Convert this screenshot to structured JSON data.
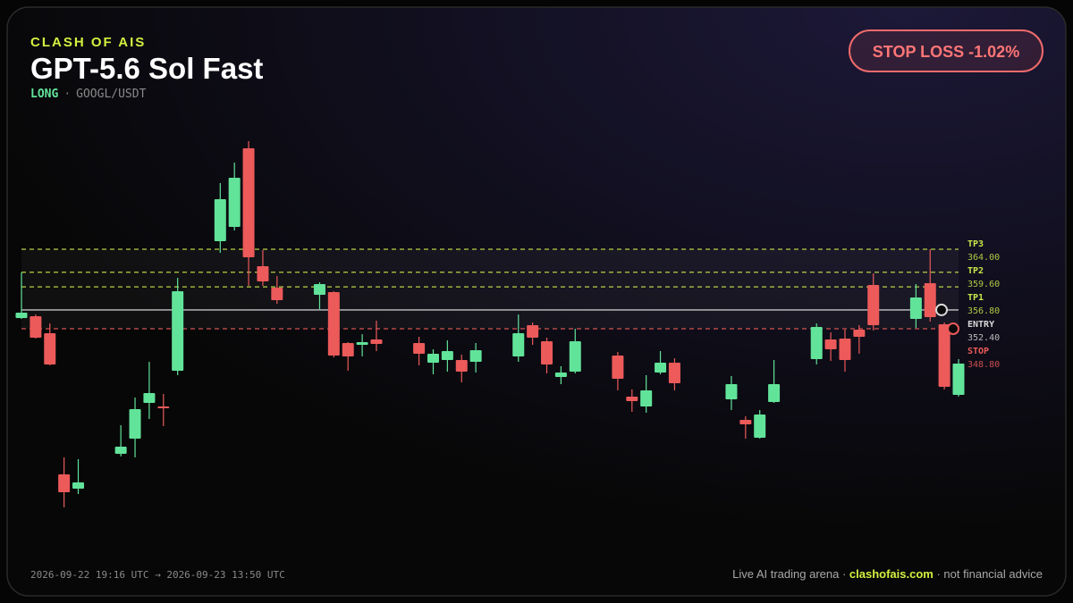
{
  "header": {
    "brand": "CLASH OF AIS",
    "title": "GPT-5.6 Sol Fast",
    "side": "LONG",
    "separator": "·",
    "pair": "GOOGL/USDT",
    "badge": "STOP LOSS -1.02%"
  },
  "chart_data": {
    "type": "candlestick",
    "ylim": [
      311,
      386
    ],
    "up_color": "#62e39a",
    "down_color": "#ec5a5a",
    "ohlc": [
      [
        350.85,
        359.56,
        350.68,
        351.87
      ],
      [
        351.19,
        351.53,
        346.92,
        347.09
      ],
      [
        347.95,
        349.82,
        341.8,
        341.97
      ],
      [
        320.96,
        324.21,
        314.64,
        317.55
      ],
      [
        318.23,
        323.86,
        317.2,
        319.42
      ],
      null,
      null,
      [
        324.89,
        330.35,
        324.38,
        326.26
      ],
      [
        327.79,
        335.65,
        324.21,
        333.43
      ],
      [
        334.62,
        342.48,
        331.55,
        336.5
      ],
      [
        333.94,
        336.33,
        330.18,
        333.6
      ],
      [
        340.77,
        358.53,
        339.92,
        355.97
      ],
      null,
      null,
      [
        365.54,
        376.64,
        363.32,
        373.56
      ],
      [
        368.27,
        380.57,
        367.59,
        377.66
      ],
      [
        383.3,
        384.67,
        357.0,
        362.46
      ],
      [
        360.75,
        363.83,
        357.0,
        357.85
      ],
      [
        356.66,
        358.88,
        353.58,
        354.26
      ],
      null,
      null,
      [
        355.29,
        357.68,
        352.56,
        357.34
      ],
      [
        355.8,
        355.97,
        343.33,
        343.68
      ],
      [
        346.07,
        346.24,
        340.77,
        343.51
      ],
      [
        345.73,
        347.77,
        343.51,
        346.24
      ],
      [
        346.75,
        350.34,
        344.53,
        345.9
      ],
      null,
      null,
      [
        346.07,
        347.26,
        341.8,
        344.02
      ],
      [
        342.31,
        344.87,
        340.09,
        344.02
      ],
      [
        342.82,
        346.58,
        340.6,
        344.53
      ],
      [
        342.82,
        343.85,
        338.55,
        340.6
      ],
      [
        342.48,
        346.07,
        340.43,
        344.7
      ],
      null,
      null,
      [
        343.51,
        351.53,
        342.48,
        347.95
      ],
      [
        349.48,
        350.0,
        345.73,
        347.09
      ],
      [
        346.41,
        347.09,
        340.26,
        341.97
      ],
      [
        339.58,
        341.63,
        338.21,
        340.43
      ],
      [
        340.6,
        348.8,
        340.26,
        346.41
      ],
      null,
      null,
      [
        343.68,
        344.36,
        337.02,
        339.24
      ],
      [
        335.82,
        337.19,
        332.92,
        334.97
      ],
      [
        333.94,
        339.92,
        332.75,
        337.02
      ],
      [
        340.43,
        344.53,
        340.09,
        342.31
      ],
      [
        342.31,
        343.16,
        337.02,
        338.38
      ],
      null,
      null,
      null,
      [
        335.31,
        339.75,
        333.26,
        338.21
      ],
      [
        331.38,
        332.06,
        327.79,
        330.52
      ],
      [
        327.96,
        333.26,
        327.79,
        332.4
      ],
      [
        334.79,
        342.82,
        334.62,
        338.21
      ],
      null,
      null,
      [
        342.99,
        349.82,
        341.97,
        349.14
      ],
      [
        346.75,
        348.12,
        342.65,
        344.87
      ],
      [
        346.92,
        348.63,
        340.6,
        342.82
      ],
      [
        348.63,
        349.48,
        344.02,
        347.26
      ],
      [
        357.17,
        359.39,
        348.46,
        349.48
      ],
      null,
      null,
      [
        350.68,
        357.34,
        348.97,
        354.78
      ],
      [
        357.51,
        364.0,
        350.17,
        351.02
      ],
      [
        349.65,
        350.0,
        337.19,
        337.7
      ],
      [
        336.16,
        342.99,
        335.82,
        342.14
      ]
    ],
    "levels": [
      {
        "name": "TP3",
        "price": {
          "value": 364,
          "label": "364.00"
        },
        "color": "#c8e64a",
        "dashed": true
      },
      {
        "name": "TP2",
        "price": {
          "value": 359.6,
          "label": "359.60"
        },
        "color": "#c8e64a",
        "dashed": true
      },
      {
        "name": "TP1",
        "price": {
          "value": 356.8,
          "label": "356.80"
        },
        "color": "#c8e64a",
        "dashed": true
      },
      {
        "name": "ENTRY",
        "price": {
          "value": 352.4,
          "label": "352.40"
        },
        "color": "#d8d8d8",
        "dashed": false
      },
      {
        "name": "STOP",
        "price": {
          "value": 348.8,
          "label": "348.80"
        },
        "color": "#ec5a5a",
        "dashed": true
      }
    ]
  },
  "footer": {
    "range": "2026-09-22 19:16 UTC → 2026-09-23 13:50 UTC",
    "prefix": "Live AI trading arena ·",
    "site": "clashofais.com",
    "suffix": "· not financial advice"
  }
}
